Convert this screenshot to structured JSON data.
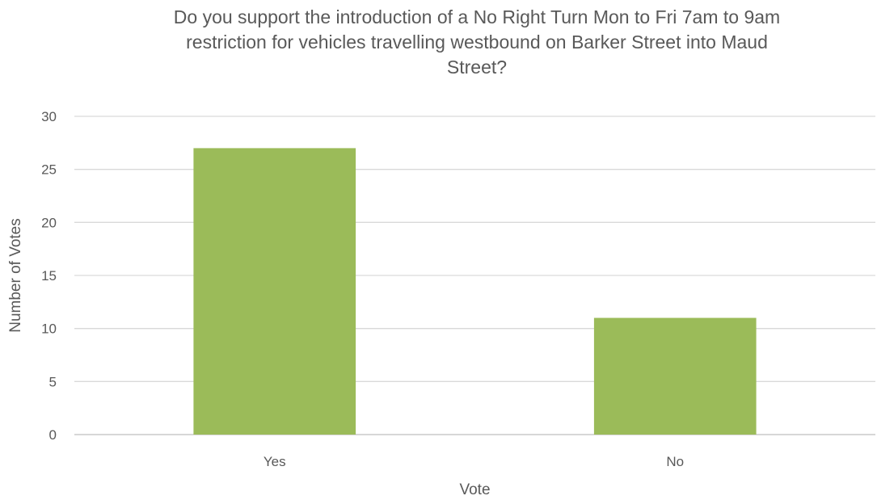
{
  "chart_data": {
    "type": "bar",
    "title_lines": [
      "Do you support the introduction of a No Right Turn Mon to Fri 7am to 9am",
      "restriction for vehicles travelling westbound on Barker Street into Maud",
      "Street?"
    ],
    "xlabel": "Vote",
    "ylabel": "Number of Votes",
    "categories": [
      "Yes",
      "No"
    ],
    "values": [
      27,
      11
    ],
    "ylim": [
      0,
      30
    ],
    "yticks": [
      0,
      5,
      10,
      15,
      20,
      25,
      30
    ],
    "grid": true,
    "legend": "none",
    "colors": {
      "bar": "#9bbb59",
      "grid": "#d9d9d9",
      "axis": "#bfbfbf",
      "text": "#595959"
    }
  }
}
